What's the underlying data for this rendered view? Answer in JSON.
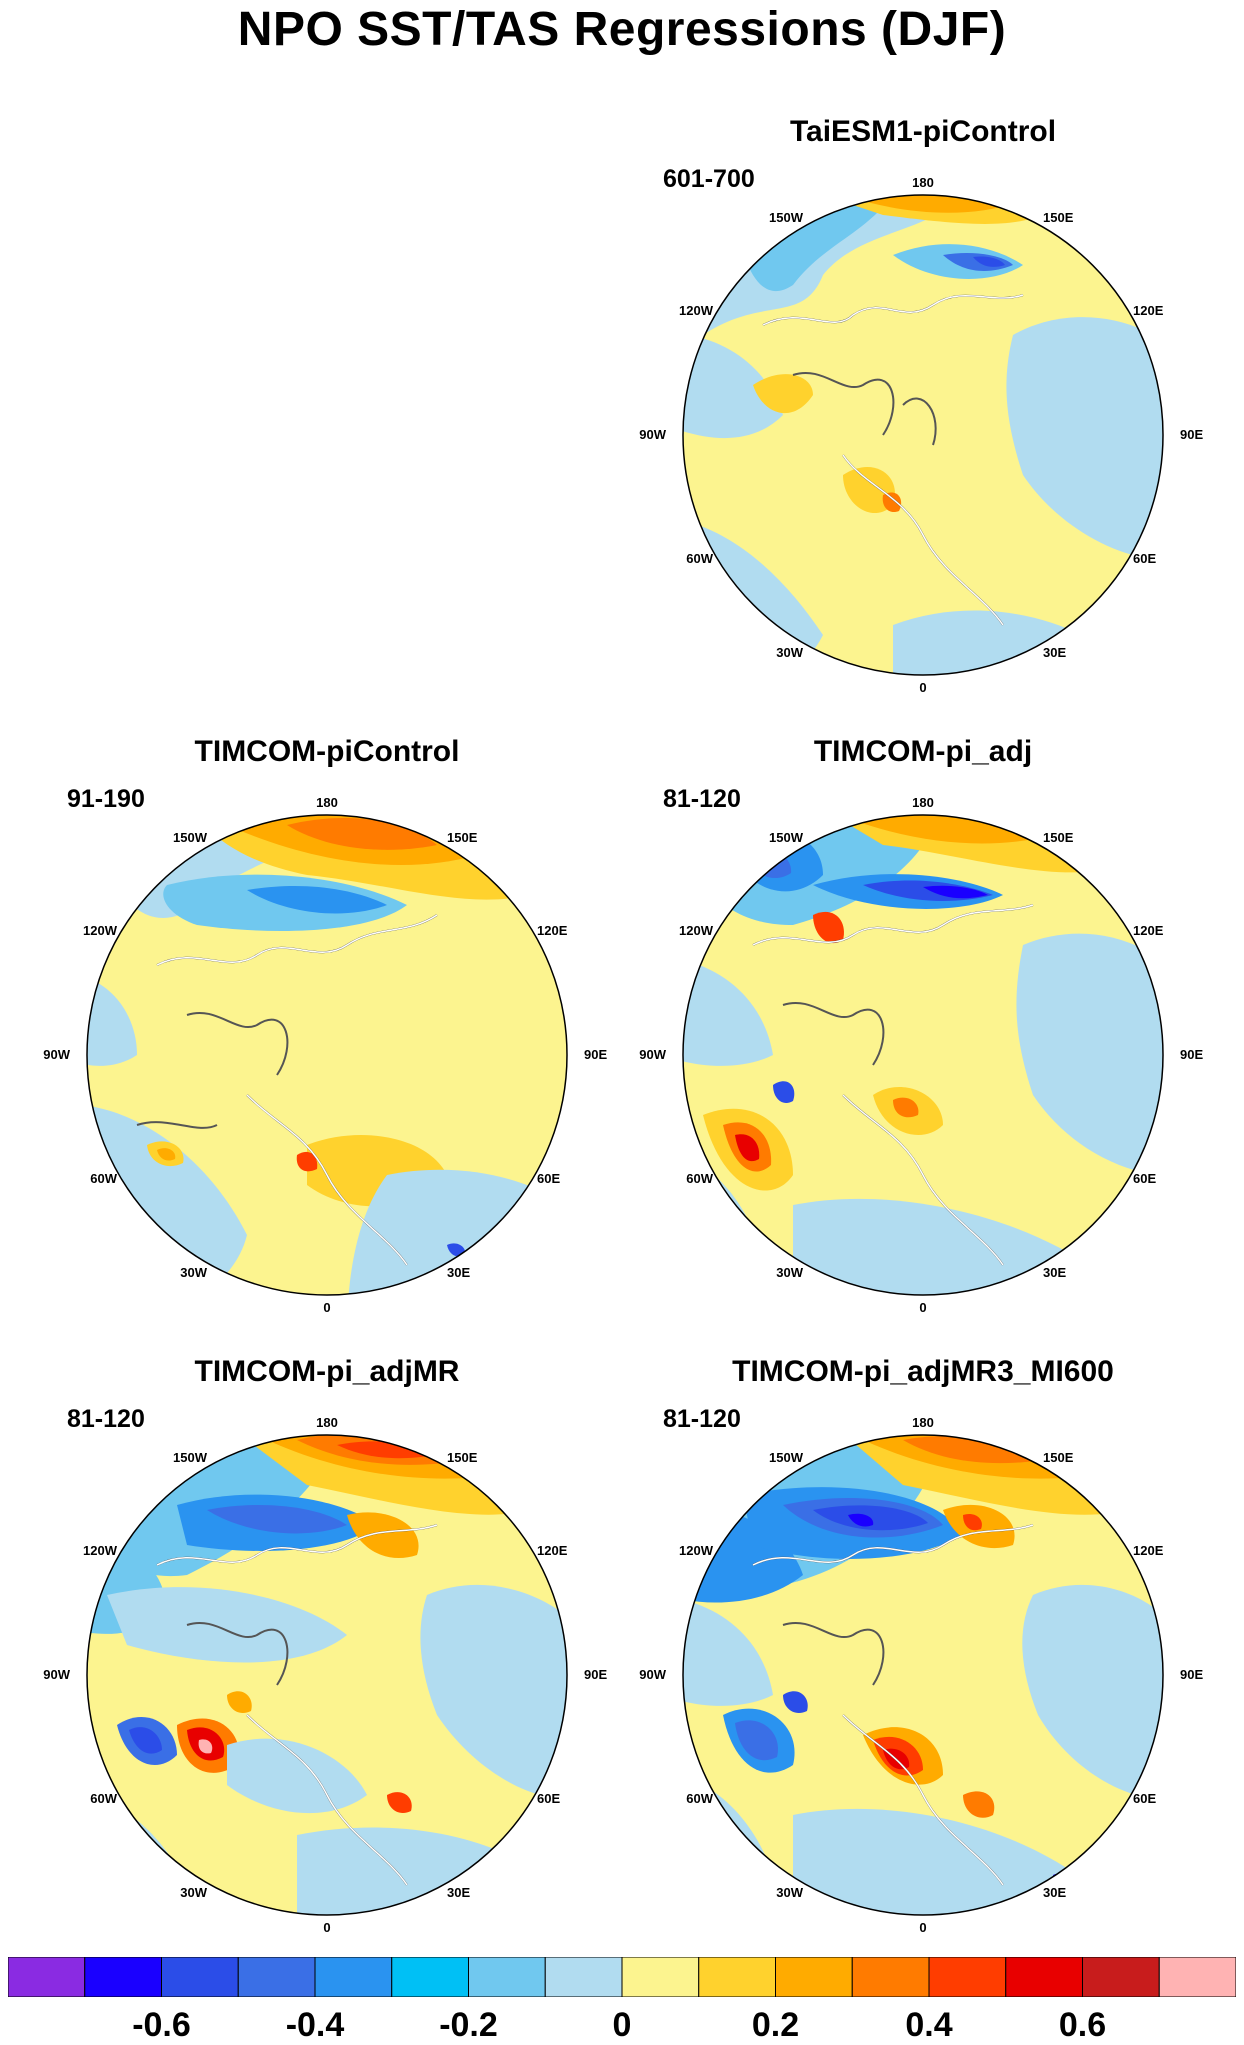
{
  "title": "NPO SST/TAS Regressions (DJF)",
  "lon_labels": [
    "180",
    "150E",
    "120E",
    "90E",
    "60E",
    "30E",
    "0",
    "30W",
    "60W",
    "90W",
    "120W",
    "150W"
  ],
  "panels": [
    {
      "title": "TaiESM1-piControl",
      "period": "601-700"
    },
    {
      "title": "TIMCOM-piControl",
      "period": "91-190"
    },
    {
      "title": "TIMCOM-pi_adj",
      "period": "81-120"
    },
    {
      "title": "TIMCOM-pi_adjMR",
      "period": "81-120"
    },
    {
      "title": "TIMCOM-pi_adjMR3_MI600",
      "period": "81-120"
    }
  ],
  "colorbar": {
    "colors": [
      "#8a2be2",
      "#1a00ff",
      "#2b4de8",
      "#3a6fe6",
      "#2a93f0",
      "#00c0f5",
      "#70c8ef",
      "#b1dcf0",
      "#fcf48f",
      "#ffd22d",
      "#ffab00",
      "#ff7b00",
      "#ff3d00",
      "#e80000",
      "#c81c1c",
      "#ffb3b3"
    ],
    "tick_labels": [
      "-0.6",
      "-0.4",
      "-0.2",
      "0",
      "0.2",
      "0.4",
      "0.6"
    ],
    "tick_values": [
      -0.6,
      -0.4,
      -0.2,
      0,
      0.2,
      0.4,
      0.6
    ]
  }
}
